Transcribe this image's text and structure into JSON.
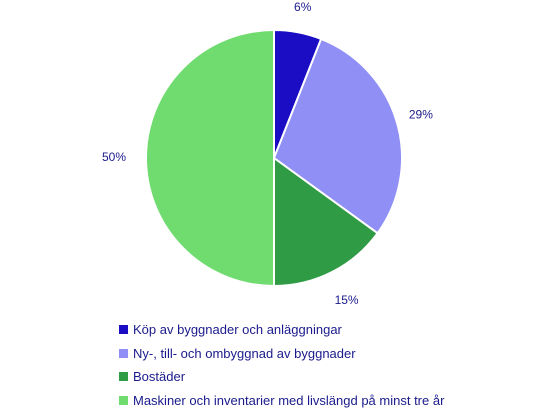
{
  "chart_data": {
    "type": "pie",
    "title": "",
    "series": [
      {
        "values": [
          6,
          29,
          15,
          50
        ],
        "labels": [
          "6%",
          "29%",
          "15%",
          "50%"
        ]
      }
    ],
    "categories": [
      "Köp av byggnader och anläggningar",
      "Ny-, till- och ombyggnad av byggnader",
      "Bostäder",
      "Maskiner och inventarier med livslängd på minst tre år"
    ],
    "colors": [
      "#1a0dc4",
      "#8f8ff5",
      "#2f9b45",
      "#70db6e"
    ],
    "legend_position": "bottom-left",
    "start_angle": "12 o'clock",
    "direction": "clockwise"
  }
}
